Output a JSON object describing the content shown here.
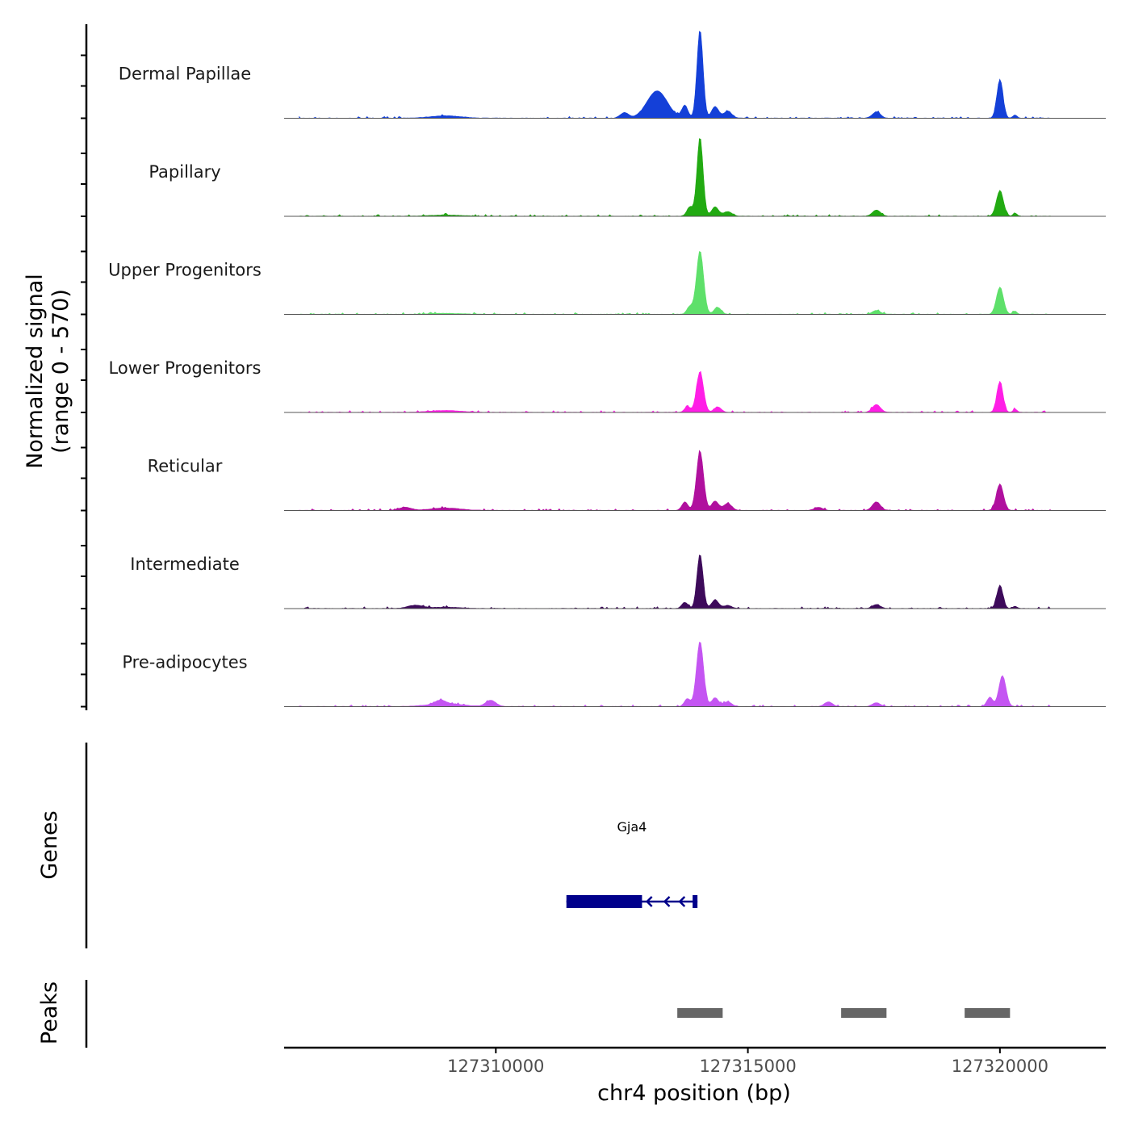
{
  "chart_data": {
    "type": "area",
    "title": "",
    "ylabel_line1": "Normalized signal",
    "ylabel_line2": "(range 0 - 570)",
    "xlabel": "chr4 position (bp)",
    "xlim": [
      127305800,
      127322100
    ],
    "ylim": [
      0,
      570
    ],
    "x_ticks": [
      127310000,
      127315000,
      127320000
    ],
    "x_tick_labels": [
      "127310000",
      "127315000",
      "127320000"
    ],
    "genes_label": "Genes",
    "peaks_label": "Peaks",
    "series": [
      {
        "name": "Dermal Papillae",
        "color": "#1440D8",
        "peaks": [
          [
            127314050,
            570,
            60
          ],
          [
            127313200,
            175,
            200
          ],
          [
            127312550,
            35,
            80
          ],
          [
            127313750,
            80,
            60
          ],
          [
            127314350,
            75,
            70
          ],
          [
            127314600,
            45,
            80
          ],
          [
            127317550,
            40,
            80
          ],
          [
            127320000,
            250,
            60
          ],
          [
            127320300,
            20,
            40
          ],
          [
            127309000,
            15,
            300
          ]
        ]
      },
      {
        "name": "Papillary",
        "color": "#22AA12",
        "peaks": [
          [
            127314050,
            510,
            60
          ],
          [
            127313850,
            60,
            60
          ],
          [
            127314350,
            60,
            70
          ],
          [
            127314600,
            30,
            80
          ],
          [
            127317550,
            40,
            80
          ],
          [
            127320000,
            165,
            70
          ],
          [
            127320300,
            20,
            40
          ],
          [
            127309000,
            8,
            300
          ]
        ]
      },
      {
        "name": "Upper Progenitors",
        "color": "#5EE06A",
        "peaks": [
          [
            127314050,
            410,
            70
          ],
          [
            127313850,
            50,
            60
          ],
          [
            127314400,
            45,
            70
          ],
          [
            127317550,
            25,
            80
          ],
          [
            127320000,
            175,
            70
          ],
          [
            127320300,
            20,
            40
          ],
          [
            127309000,
            6,
            300
          ]
        ]
      },
      {
        "name": "Lower Progenitors",
        "color": "#FF1EE6",
        "peaks": [
          [
            127314050,
            260,
            70
          ],
          [
            127313800,
            35,
            60
          ],
          [
            127314400,
            35,
            70
          ],
          [
            127317550,
            50,
            80
          ],
          [
            127320000,
            200,
            60
          ],
          [
            127320300,
            20,
            40
          ],
          [
            127309000,
            12,
            300
          ]
        ]
      },
      {
        "name": "Reticular",
        "color": "#B0109E",
        "peaks": [
          [
            127314050,
            380,
            70
          ],
          [
            127313750,
            55,
            60
          ],
          [
            127314350,
            60,
            70
          ],
          [
            127314600,
            45,
            80
          ],
          [
            127316400,
            20,
            80
          ],
          [
            127317550,
            55,
            80
          ],
          [
            127320000,
            170,
            70
          ],
          [
            127308200,
            20,
            120
          ],
          [
            127309000,
            15,
            300
          ]
        ]
      },
      {
        "name": "Intermediate",
        "color": "#3D0A5A",
        "peaks": [
          [
            127314050,
            350,
            60
          ],
          [
            127313750,
            40,
            60
          ],
          [
            127314350,
            55,
            70
          ],
          [
            127314600,
            20,
            80
          ],
          [
            127317550,
            25,
            80
          ],
          [
            127320000,
            150,
            60
          ],
          [
            127320300,
            15,
            40
          ],
          [
            127308400,
            20,
            150
          ],
          [
            127309000,
            8,
            300
          ]
        ]
      },
      {
        "name": "Pre-adipocytes",
        "color": "#C455F2",
        "peaks": [
          [
            127314050,
            420,
            70
          ],
          [
            127313800,
            50,
            60
          ],
          [
            127314350,
            55,
            70
          ],
          [
            127314600,
            30,
            80
          ],
          [
            127316600,
            30,
            80
          ],
          [
            127317550,
            25,
            80
          ],
          [
            127319800,
            60,
            60
          ],
          [
            127320050,
            200,
            70
          ],
          [
            127309900,
            40,
            100
          ],
          [
            127308900,
            25,
            100
          ],
          [
            127309000,
            18,
            350
          ]
        ]
      }
    ],
    "gene": {
      "name": "Gja4",
      "color": "#00008B",
      "start": 127311400,
      "end": 127314000,
      "thick_start": 127311400,
      "thick_end": 127312900,
      "strand": "-"
    },
    "peaks_regions": [
      [
        127313600,
        127314500
      ],
      [
        127316850,
        127317750
      ],
      [
        127319300,
        127320200
      ]
    ],
    "peak_color": "#666666"
  }
}
